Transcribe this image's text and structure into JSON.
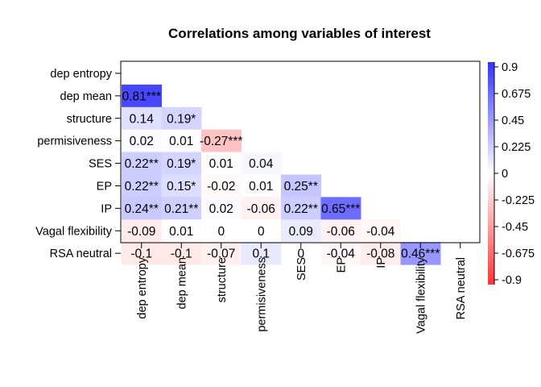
{
  "chart_data": {
    "type": "heatmap",
    "title": "Correlations among variables of interest",
    "variables": [
      "dep entropy",
      "dep mean",
      "structure",
      "permisiveness",
      "SES",
      "EP",
      "IP",
      "Vagal flexibility",
      "RSA neutral"
    ],
    "cells": [
      {
        "row": 1,
        "col": 0,
        "value": 0.81,
        "label": "0.81***"
      },
      {
        "row": 2,
        "col": 0,
        "value": 0.14,
        "label": "0.14"
      },
      {
        "row": 2,
        "col": 1,
        "value": 0.19,
        "label": "0.19*"
      },
      {
        "row": 3,
        "col": 0,
        "value": 0.02,
        "label": "0.02"
      },
      {
        "row": 3,
        "col": 1,
        "value": 0.01,
        "label": "0.01"
      },
      {
        "row": 3,
        "col": 2,
        "value": -0.27,
        "label": "-0.27***"
      },
      {
        "row": 4,
        "col": 0,
        "value": 0.22,
        "label": "0.22**"
      },
      {
        "row": 4,
        "col": 1,
        "value": 0.19,
        "label": "0.19*"
      },
      {
        "row": 4,
        "col": 2,
        "value": 0.01,
        "label": "0.01"
      },
      {
        "row": 4,
        "col": 3,
        "value": 0.04,
        "label": "0.04"
      },
      {
        "row": 5,
        "col": 0,
        "value": 0.22,
        "label": "0.22**"
      },
      {
        "row": 5,
        "col": 1,
        "value": 0.15,
        "label": "0.15*"
      },
      {
        "row": 5,
        "col": 2,
        "value": -0.02,
        "label": "-0.02"
      },
      {
        "row": 5,
        "col": 3,
        "value": 0.01,
        "label": "0.01"
      },
      {
        "row": 5,
        "col": 4,
        "value": 0.25,
        "label": "0.25**"
      },
      {
        "row": 6,
        "col": 0,
        "value": 0.24,
        "label": "0.24**"
      },
      {
        "row": 6,
        "col": 1,
        "value": 0.21,
        "label": "0.21**"
      },
      {
        "row": 6,
        "col": 2,
        "value": 0.02,
        "label": "0.02"
      },
      {
        "row": 6,
        "col": 3,
        "value": -0.06,
        "label": "-0.06"
      },
      {
        "row": 6,
        "col": 4,
        "value": 0.22,
        "label": "0.22**"
      },
      {
        "row": 6,
        "col": 5,
        "value": 0.65,
        "label": "0.65***"
      },
      {
        "row": 7,
        "col": 0,
        "value": -0.09,
        "label": "-0.09"
      },
      {
        "row": 7,
        "col": 1,
        "value": 0.01,
        "label": "0.01"
      },
      {
        "row": 7,
        "col": 2,
        "value": 0,
        "label": "0"
      },
      {
        "row": 7,
        "col": 3,
        "value": 0,
        "label": "0"
      },
      {
        "row": 7,
        "col": 4,
        "value": 0.09,
        "label": "0.09"
      },
      {
        "row": 7,
        "col": 5,
        "value": -0.06,
        "label": "-0.06"
      },
      {
        "row": 7,
        "col": 6,
        "value": -0.04,
        "label": "-0.04"
      },
      {
        "row": 8,
        "col": 0,
        "value": -0.1,
        "label": "-0.1"
      },
      {
        "row": 8,
        "col": 1,
        "value": -0.1,
        "label": "-0.1"
      },
      {
        "row": 8,
        "col": 2,
        "value": -0.07,
        "label": "-0.07"
      },
      {
        "row": 8,
        "col": 3,
        "value": 0.1,
        "label": "0.1"
      },
      {
        "row": 8,
        "col": 4,
        "value": 0,
        "label": "0"
      },
      {
        "row": 8,
        "col": 5,
        "value": -0.04,
        "label": "-0.04"
      },
      {
        "row": 8,
        "col": 6,
        "value": -0.08,
        "label": "-0.08"
      },
      {
        "row": 8,
        "col": 7,
        "value": 0.46,
        "label": "0.46***"
      }
    ],
    "colorbar": {
      "range": [
        -0.9,
        0.9
      ],
      "tick_labels": [
        "0.9",
        "0.675",
        "0.45",
        "0.225",
        "0",
        "-0.225",
        "-0.45",
        "-0.675",
        "-0.9"
      ],
      "negative_color": "#FF3333",
      "zero_color": "#FFFFFF",
      "positive_color": "#3333FF"
    },
    "grid": false,
    "legend_position": "right"
  }
}
